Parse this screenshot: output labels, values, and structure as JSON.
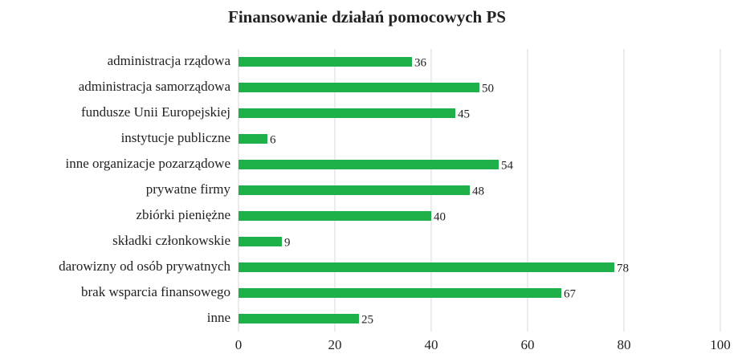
{
  "chart_data": {
    "type": "barh",
    "title": "Finansowanie działań pomocowych PS",
    "categories": [
      "administracja rządowa",
      "administracja samorządowa",
      "fundusze Unii Europejskiej",
      "instytucje publiczne",
      "inne organizacje pozarządowe",
      "prywatne firmy",
      "zbiórki pieniężne",
      "składki członkowskie",
      "darowizny od osób prywatnych",
      "brak wsparcia finansowego",
      "inne"
    ],
    "values": [
      36,
      50,
      45,
      6,
      54,
      48,
      40,
      9,
      78,
      67,
      25
    ],
    "color": "#1fb04a",
    "xlim": [
      0,
      100
    ],
    "xticks": [
      0,
      20,
      40,
      60,
      80,
      100
    ],
    "grid": true
  }
}
